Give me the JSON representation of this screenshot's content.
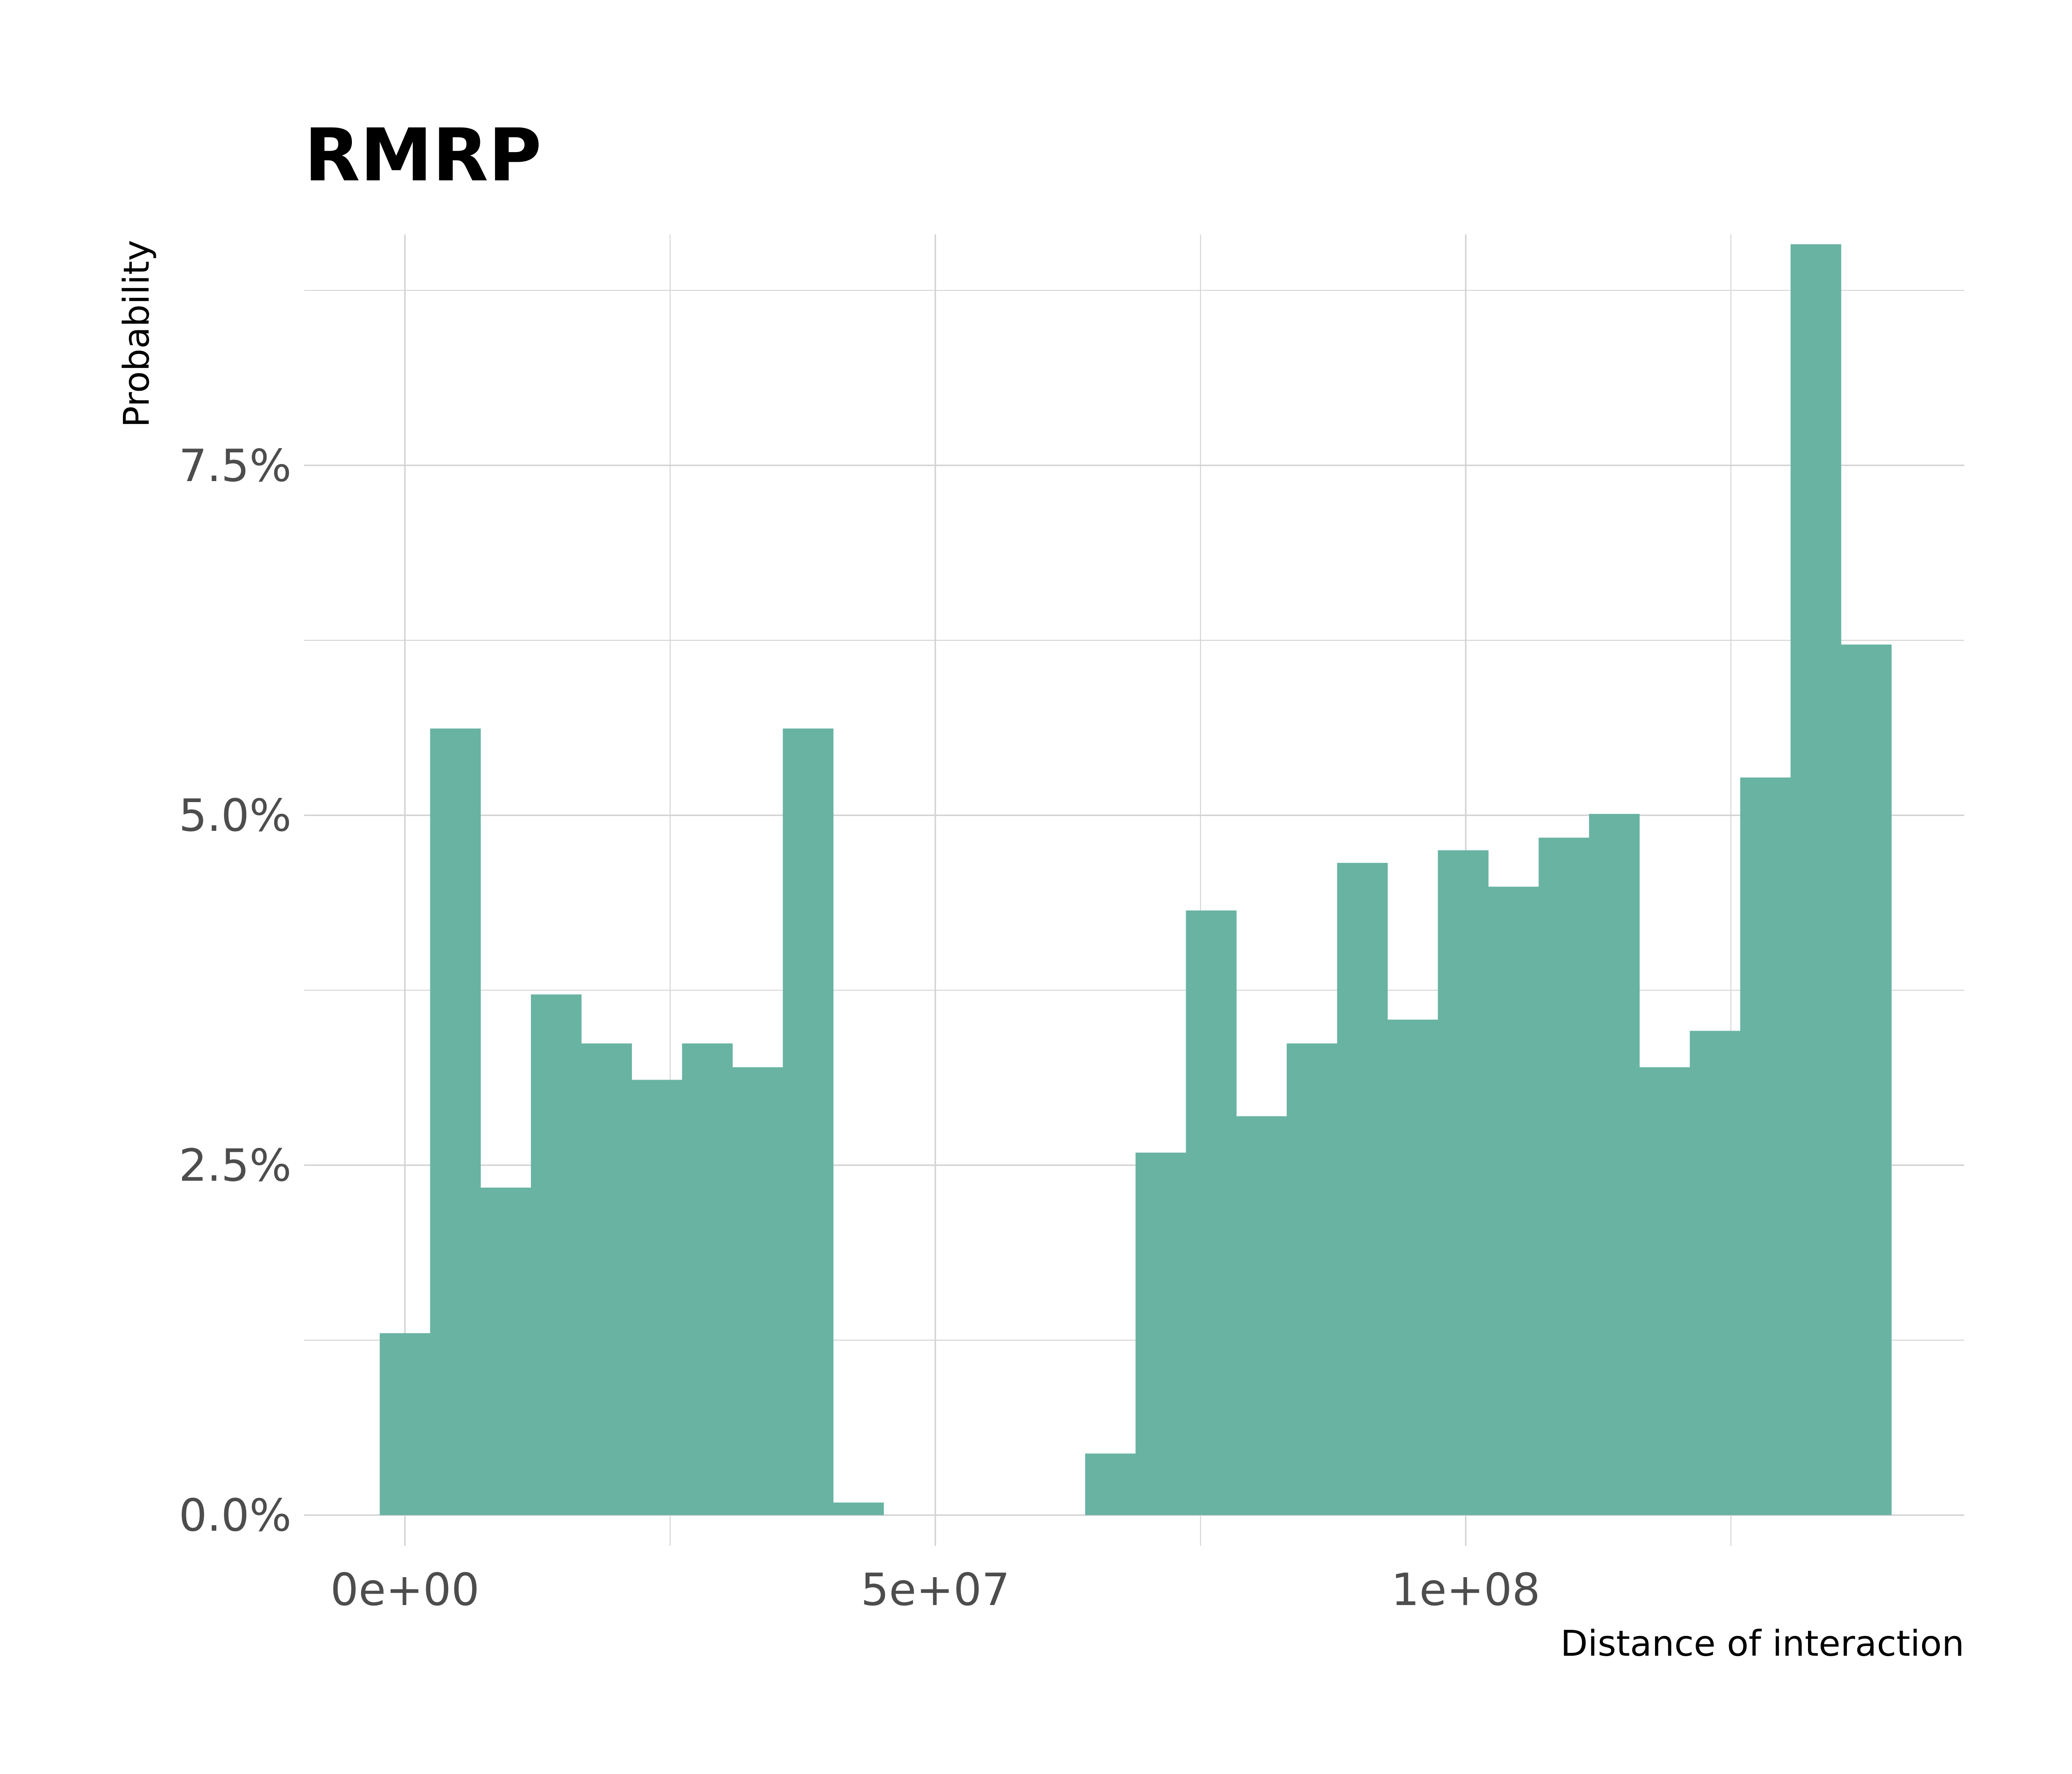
{
  "chart_data": {
    "type": "bar",
    "title": "RMRP",
    "xlabel": "Distance of interaction",
    "ylabel": "Probability",
    "xlim": [
      -9500000,
      147000000
    ],
    "ylim": [
      -0.0022,
      0.0915
    ],
    "x_ticks": [
      {
        "value": 0,
        "label": "0e+00"
      },
      {
        "value": 50000000,
        "label": "5e+07"
      },
      {
        "value": 100000000,
        "label": "1e+08"
      }
    ],
    "y_ticks": [
      {
        "value": 0.0,
        "label": "0.0%"
      },
      {
        "value": 0.025,
        "label": "2.5%"
      },
      {
        "value": 0.05,
        "label": "5.0%"
      },
      {
        "value": 0.075,
        "label": "7.5%"
      }
    ],
    "grid": true,
    "bin_width": 4750000,
    "bin_start": -2375000,
    "values": [
      0.013,
      0.0562,
      0.0234,
      0.0372,
      0.0337,
      0.0311,
      0.0337,
      0.032,
      0.0562,
      0.0009,
      0,
      0,
      0,
      0,
      0.0044,
      0.0259,
      0.0432,
      0.0285,
      0.0337,
      0.0466,
      0.0354,
      0.0475,
      0.0449,
      0.0484,
      0.0501,
      0.032,
      0.0346,
      0.0527,
      0.0908,
      0.0622
    ],
    "fill_color": "#69b3a2",
    "grid_color": "#d3d3d3"
  }
}
